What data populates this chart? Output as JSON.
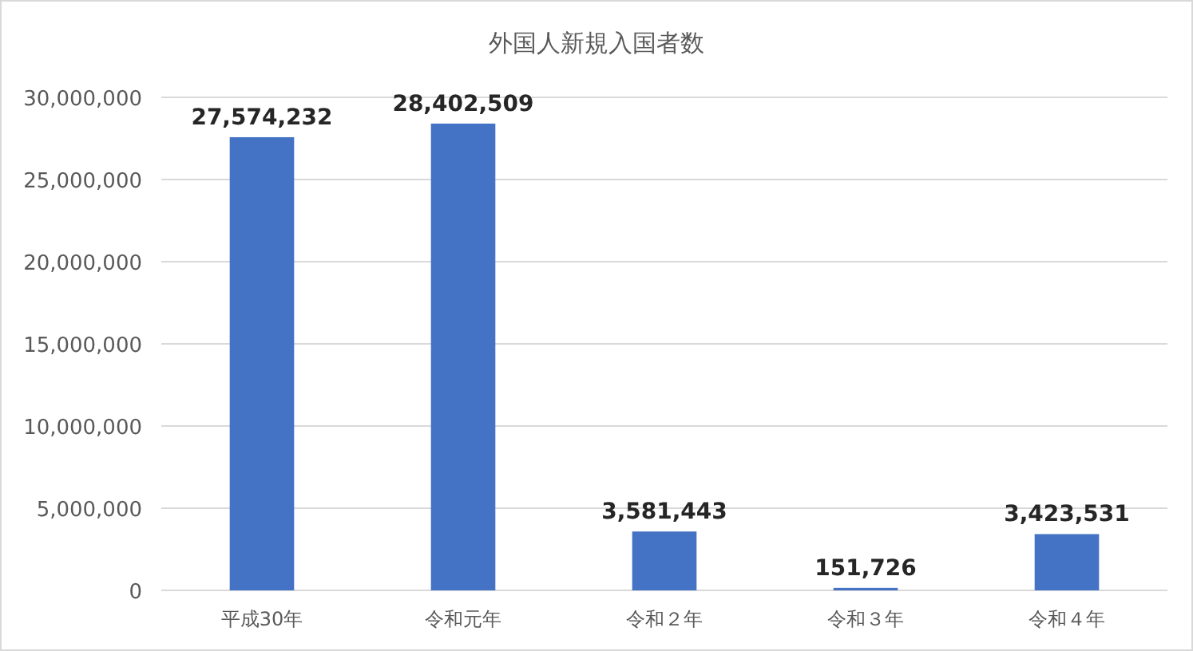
{
  "chart_data": {
    "type": "bar",
    "title": "外国人新規入国者数",
    "categories": [
      "平成30年",
      "令和元年",
      "令和２年",
      "令和３年",
      "令和４年"
    ],
    "values": [
      27574232,
      28402509,
      3581443,
      151726,
      3423531
    ],
    "color": "#4472c4",
    "ylim": [
      0,
      30000000
    ],
    "yticks": [
      {
        "value": 0,
        "label": "0"
      },
      {
        "value": 5000000,
        "label": "5,000,000"
      },
      {
        "value": 10000000,
        "label": "10,000,000"
      },
      {
        "value": 15000000,
        "label": "15,000,000"
      },
      {
        "value": 20000000,
        "label": "20,000,000"
      },
      {
        "value": 25000000,
        "label": "25,000,000"
      },
      {
        "value": 30000000,
        "label": "30,000,000"
      }
    ],
    "value_labels": [
      "27,574,232",
      "28,402,509",
      "3,581,443",
      "151,726",
      "3,423,531"
    ],
    "grid": "y"
  }
}
